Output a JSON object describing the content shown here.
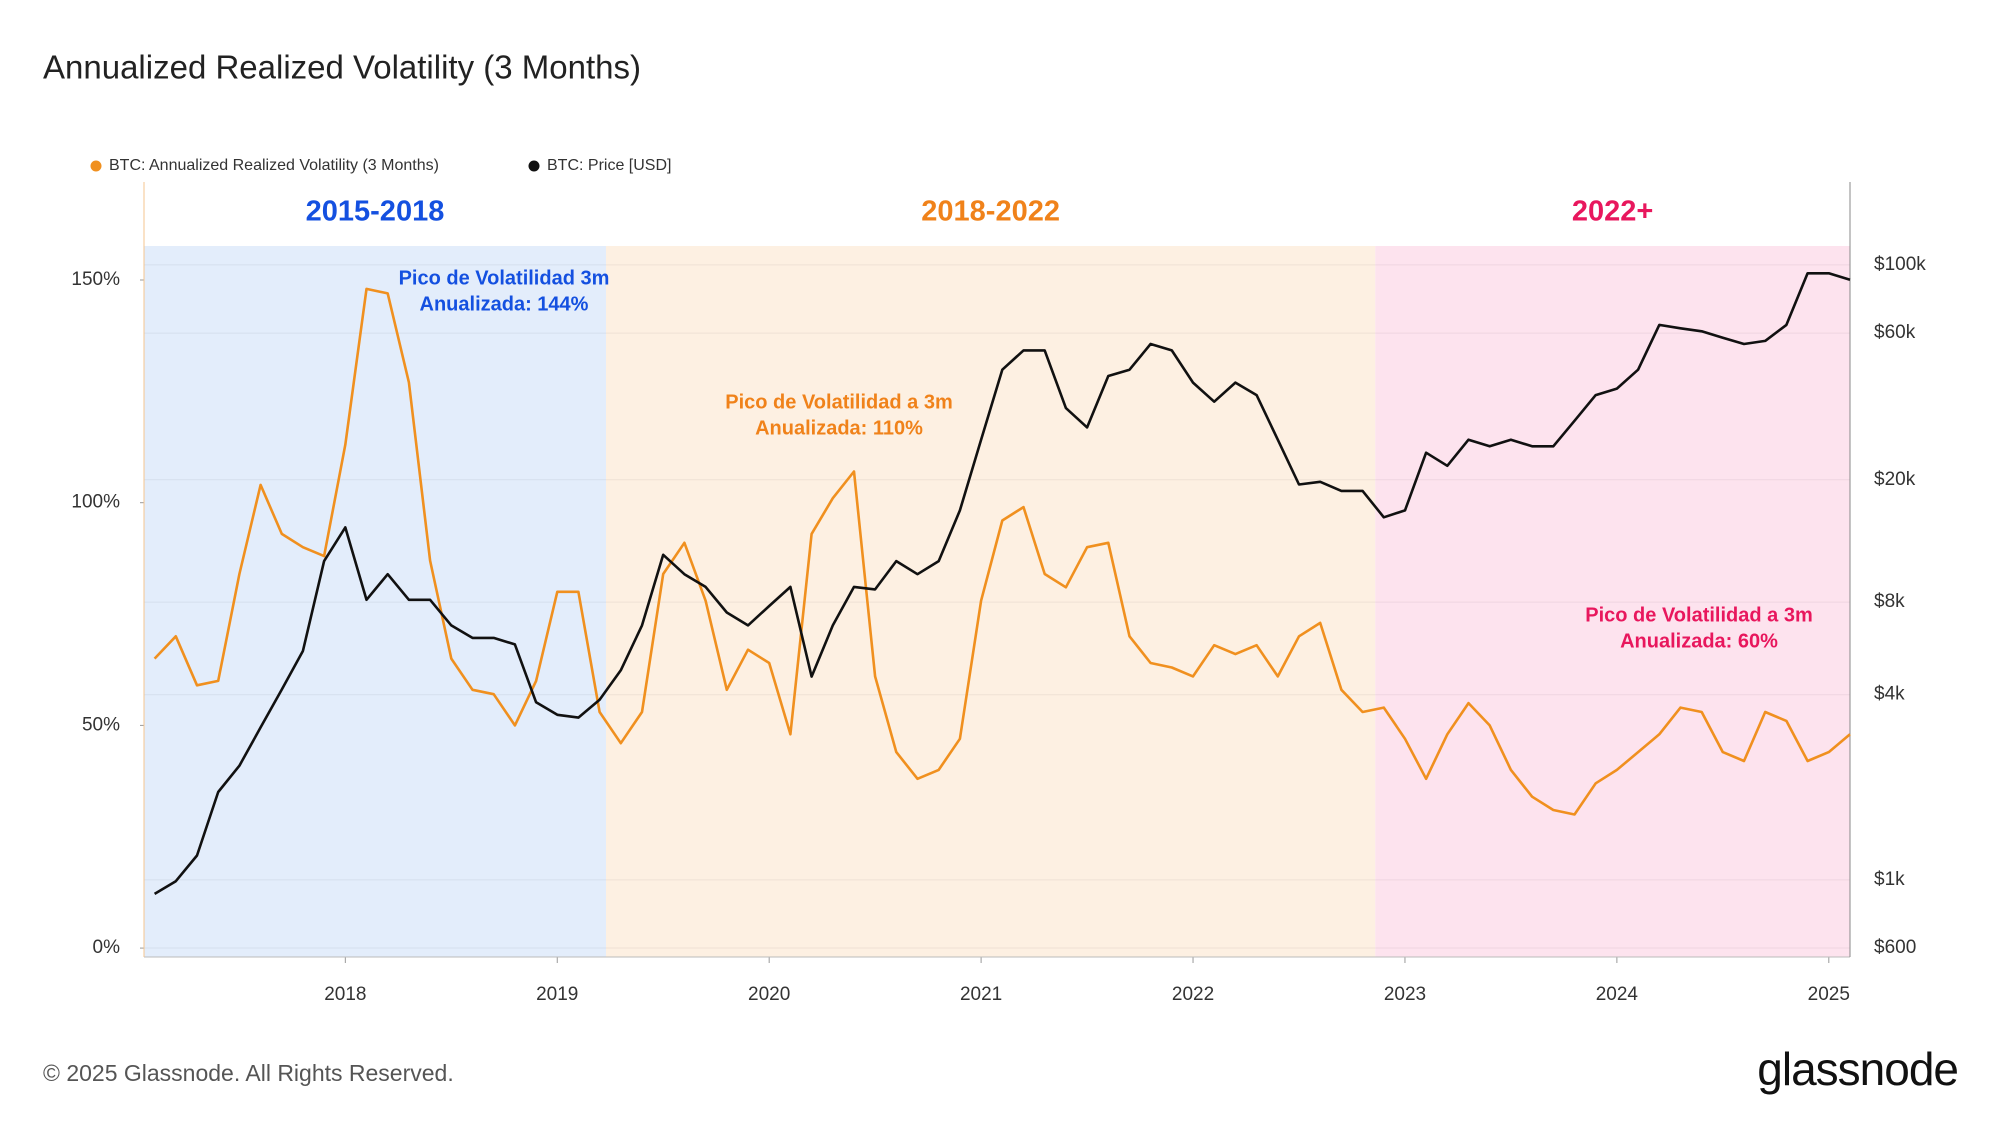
{
  "chart_data": {
    "type": "line",
    "title": "Annualized Realized Volatility (3 Months)",
    "source": "© 2025 Glassnode. All Rights Reserved.",
    "logo": "glassnode",
    "x": [
      2017.1,
      2017.2,
      2017.3,
      2017.4,
      2017.5,
      2017.6,
      2017.7,
      2017.8,
      2017.9,
      2018.0,
      2018.1,
      2018.2,
      2018.3,
      2018.4,
      2018.5,
      2018.6,
      2018.7,
      2018.8,
      2018.9,
      2019.0,
      2019.1,
      2019.2,
      2019.3,
      2019.4,
      2019.5,
      2019.6,
      2019.7,
      2019.8,
      2019.9,
      2020.0,
      2020.1,
      2020.2,
      2020.3,
      2020.4,
      2020.5,
      2020.6,
      2020.7,
      2020.8,
      2020.9,
      2021.0,
      2021.1,
      2021.2,
      2021.3,
      2021.4,
      2021.5,
      2021.6,
      2021.7,
      2021.8,
      2021.9,
      2022.0,
      2022.1,
      2022.2,
      2022.3,
      2022.4,
      2022.5,
      2022.6,
      2022.7,
      2022.8,
      2022.9,
      2023.0,
      2023.1,
      2023.2,
      2023.3,
      2023.4,
      2023.5,
      2023.6,
      2023.7,
      2023.8,
      2023.9,
      2024.0,
      2024.1,
      2024.2,
      2024.3,
      2024.4,
      2024.5,
      2024.6,
      2024.7,
      2024.8,
      2024.9,
      2025.0,
      2025.1
    ],
    "series": [
      {
        "name": "BTC: Annualized Realized Volatility (3 Months)",
        "color": "#f0901f",
        "axis": "y",
        "values": [
          65,
          70,
          59,
          60,
          84,
          104,
          93,
          90,
          88,
          113,
          148,
          147,
          127,
          87,
          65,
          58,
          57,
          50,
          60,
          80,
          80,
          53,
          46,
          53,
          84,
          91,
          78,
          58,
          67,
          64,
          48,
          93,
          101,
          107,
          61,
          44,
          38,
          40,
          47,
          78,
          96,
          99,
          84,
          81,
          90,
          91,
          70,
          64,
          63,
          61,
          68,
          66,
          68,
          61,
          70,
          73,
          58,
          53,
          54,
          47,
          38,
          48,
          55,
          50,
          40,
          34,
          31,
          30,
          37,
          40,
          44,
          48,
          54,
          53,
          44,
          42,
          53,
          51,
          42,
          44,
          48
        ]
      },
      {
        "name": "BTC: Price [USD]",
        "color": "#111111",
        "axis": "y2",
        "values": [
          900,
          990,
          1200,
          1930,
          2350,
          3130,
          4160,
          5550,
          10880,
          14000,
          8140,
          9860,
          8140,
          8140,
          6720,
          6120,
          6120,
          5830,
          3780,
          3440,
          3370,
          3850,
          4800,
          6720,
          11400,
          9860,
          8970,
          7400,
          6720,
          7770,
          8970,
          4580,
          6720,
          8970,
          8800,
          10880,
          9860,
          10880,
          15900,
          27000,
          45600,
          52700,
          52700,
          34200,
          29600,
          43500,
          45600,
          55300,
          52700,
          41400,
          35900,
          41400,
          37700,
          27000,
          19300,
          19700,
          18400,
          18400,
          15100,
          15900,
          24500,
          22200,
          27000,
          25700,
          27000,
          25700,
          25700,
          31100,
          37700,
          39600,
          45600,
          63800,
          62200,
          60800,
          57900,
          55300,
          56600,
          63800,
          93900,
          93900,
          89500
        ]
      }
    ],
    "xlim": [
      2017.05,
      2025.1
    ],
    "xticks": [
      2018,
      2019,
      2020,
      2021,
      2022,
      2023,
      2024,
      2025
    ],
    "ylim": [
      -2,
      172
    ],
    "yticks": [
      {
        "value": 0,
        "label": "0%"
      },
      {
        "value": 50,
        "label": "50%"
      },
      {
        "value": 100,
        "label": "100%"
      },
      {
        "value": 150,
        "label": "150%"
      }
    ],
    "y2lim": [
      561,
      186000
    ],
    "y2scale": "log",
    "y2ticks": [
      {
        "value": 600,
        "label": "$600"
      },
      {
        "value": 1000,
        "label": "$1k"
      },
      {
        "value": 4000,
        "label": "$4k"
      },
      {
        "value": 8000,
        "label": "$8k"
      },
      {
        "value": 20000,
        "label": "$20k"
      },
      {
        "value": 60000,
        "label": "$60k"
      },
      {
        "value": 100000,
        "label": "$100k"
      }
    ],
    "grid": true,
    "legend": "top-left",
    "regions": [
      {
        "label": "2015-2018",
        "start": 2017.05,
        "end": 2019.23,
        "color": "#e3edfb",
        "label_color": "#1450e0"
      },
      {
        "label": "2018-2022",
        "start": 2019.23,
        "end": 2022.86,
        "color": "#fdf0e2",
        "label_color": "#f0821a"
      },
      {
        "label": "2022+",
        "start": 2022.86,
        "end": 2025.1,
        "color": "#fde3ee",
        "label_color": "#e8175d"
      }
    ],
    "annotations": [
      {
        "lines": [
          "Pico de Volatilidad 3m",
          "Anualizada: 144%"
        ],
        "color": "#1450e0"
      },
      {
        "lines": [
          "Pico de Volatilidad a 3m",
          "Anualizada: 110%"
        ],
        "color": "#f0821a"
      },
      {
        "lines": [
          "Pico de Volatilidad a 3m",
          "Anualizada: 60%"
        ],
        "color": "#e8175d"
      }
    ]
  }
}
